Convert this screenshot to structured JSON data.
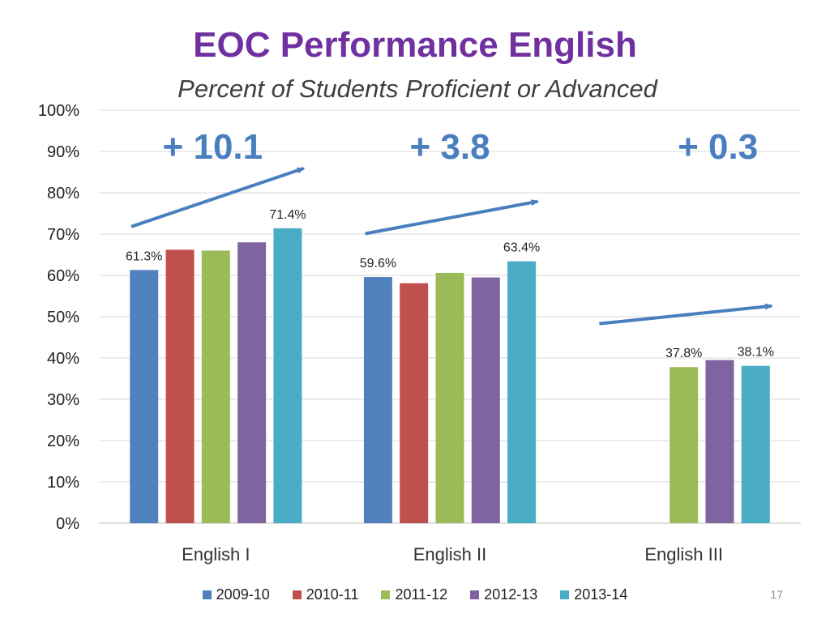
{
  "slide": {
    "title": "EOC Performance English",
    "subtitle": "Percent of Students Proficient or Advanced",
    "page_number": "17"
  },
  "colors": {
    "title": "#7030a0",
    "gain_text": "#4a7fbf",
    "arrow": "#4a7fbf"
  },
  "chart_data": {
    "type": "bar",
    "categories": [
      "English I",
      "English II",
      "English III"
    ],
    "series": [
      {
        "name": "2009-10",
        "color": "#4f81bd",
        "values": [
          61.3,
          59.6,
          null
        ]
      },
      {
        "name": "2010-11",
        "color": "#c0504d",
        "values": [
          66.2,
          58.1,
          null
        ]
      },
      {
        "name": "2011-12",
        "color": "#9bbb59",
        "values": [
          66.0,
          60.6,
          37.8
        ]
      },
      {
        "name": "2012-13",
        "color": "#8064a2",
        "values": [
          68.0,
          59.5,
          39.5
        ]
      },
      {
        "name": "2013-14",
        "color": "#4bacc6",
        "values": [
          71.4,
          63.4,
          38.1
        ]
      }
    ],
    "data_labels": [
      {
        "category": 0,
        "series": 0,
        "text": "61.3%"
      },
      {
        "category": 0,
        "series": 4,
        "text": "71.4%"
      },
      {
        "category": 1,
        "series": 0,
        "text": "59.6%"
      },
      {
        "category": 1,
        "series": 4,
        "text": "63.4%"
      },
      {
        "category": 2,
        "series": 2,
        "text": "37.8%"
      },
      {
        "category": 2,
        "series": 4,
        "text": "38.1%"
      }
    ],
    "gains": [
      "+ 10.1",
      "+ 3.8",
      "+ 0.3"
    ],
    "y_ticks": [
      "0%",
      "10%",
      "20%",
      "30%",
      "40%",
      "50%",
      "60%",
      "70%",
      "80%",
      "90%",
      "100%"
    ],
    "ylim": [
      0,
      100
    ],
    "grid": true,
    "legend": "bottom"
  }
}
